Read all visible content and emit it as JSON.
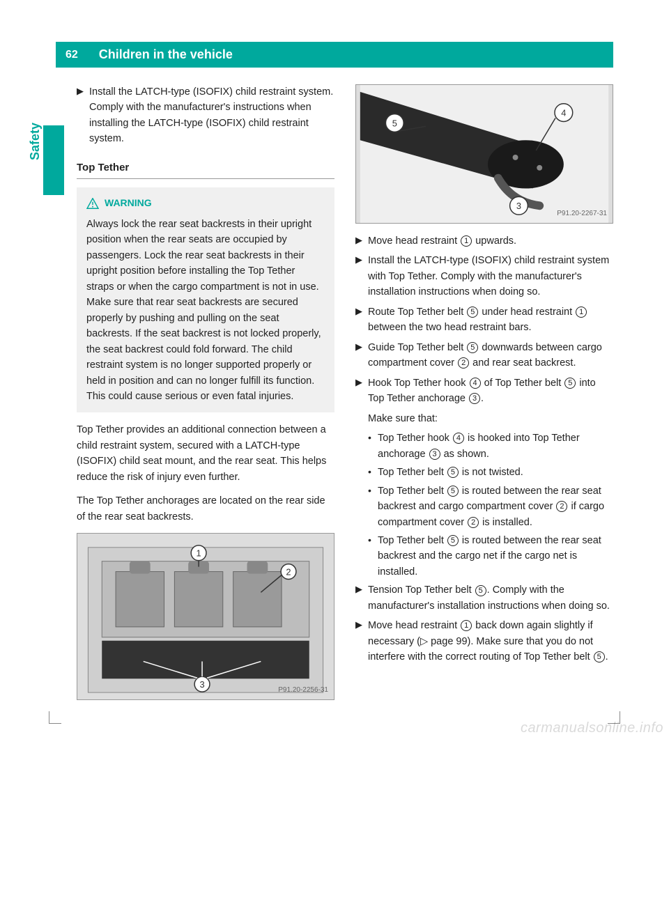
{
  "page_number": "62",
  "header_title": "Children in the vehicle",
  "side_label": "Safety",
  "colors": {
    "accent": "#00a99d",
    "text": "#222222",
    "warning_bg": "#f0f0f0",
    "figure_bg": "#dddddd"
  },
  "left_column": {
    "intro_instruction": "Install the LATCH-type (ISOFIX) child restraint system. Comply with the manufacturer's instructions when installing the LATCH-type (ISOFIX) child restraint system.",
    "section_heading": "Top Tether",
    "warning": {
      "label": "WARNING",
      "text": "Always lock the rear seat backrests in their upright position when the rear seats are occupied by passengers. Lock the rear seat backrests in their upright position before installing the Top Tether straps or when the cargo compartment is not in use. Make sure that rear seat backrests are secured properly by pushing and pulling on the seat backrests. If the seat backrest is not locked properly, the seat backrest could fold forward. The child restraint system is no longer supported properly or held in position and can no longer fulfill its function. This could cause serious or even fatal injuries."
    },
    "para1": "Top Tether provides an additional connection between a child restraint system, secured with a LATCH-type (ISOFIX) child seat mount, and the rear seat. This helps reduce the risk of injury even further.",
    "para2": "The Top Tether anchorages are located on the rear side of the rear seat backrests.",
    "figure1_label": "P91.20-2256-31"
  },
  "right_column": {
    "figure2_label": "P91.20-2267-31",
    "instructions": [
      {
        "pre": "Move head restraint ",
        "num": "1",
        "post": " upwards."
      },
      {
        "pre": "Install the LATCH-type (ISOFIX) child restraint system with Top Tether. Comply with the manufacturer's installation instructions when doing so."
      },
      {
        "pre": "Route Top Tether belt ",
        "num": "5",
        "mid": " under head restraint ",
        "num2": "1",
        "post": " between the two head restraint bars."
      },
      {
        "pre": "Guide Top Tether belt ",
        "num": "5",
        "mid": " downwards between cargo compartment cover ",
        "num2": "2",
        "post": " and rear seat backrest."
      },
      {
        "pre": "Hook Top Tether hook ",
        "num": "4",
        "mid": " of Top Tether belt ",
        "num2": "5",
        "mid2": " into Top Tether anchorage ",
        "num3": "3",
        "post": "."
      }
    ],
    "make_sure_label": "Make sure that:",
    "make_sure_items": [
      {
        "pre": "Top Tether hook ",
        "num": "4",
        "mid": " is hooked into Top Tether anchorage ",
        "num2": "3",
        "post": " as shown."
      },
      {
        "pre": "Top Tether belt ",
        "num": "5",
        "post": " is not twisted."
      },
      {
        "pre": "Top Tether belt ",
        "num": "5",
        "mid": " is routed between the rear seat backrest and cargo compartment cover ",
        "num2": "2",
        "mid2": " if cargo compartment cover ",
        "num3": "2",
        "post": " is installed."
      },
      {
        "pre": "Top Tether belt ",
        "num": "5",
        "post": " is routed between the rear seat backrest and the cargo net if the cargo net is installed."
      }
    ],
    "final_instructions": [
      {
        "pre": "Tension Top Tether belt ",
        "num": "5",
        "post": ". Comply with the manufacturer's installation instructions when doing so."
      },
      {
        "pre": "Move head restraint ",
        "num": "1",
        "mid": " back down again slightly if necessary (▷ page 99). Make sure that you do not interfere with the correct routing of Top Tether belt ",
        "num2": "5",
        "post": "."
      }
    ]
  },
  "watermark": "carmanualsonline.info"
}
